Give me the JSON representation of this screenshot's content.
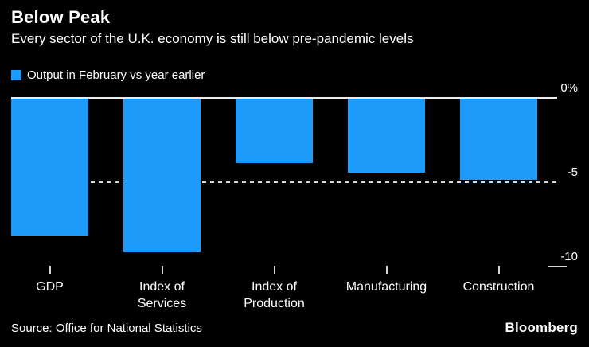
{
  "header": {
    "title": "Below Peak",
    "subtitle": "Every sector of the U.K. economy is still below pre-pandemic levels"
  },
  "legend": {
    "swatch_color": "#1e9bfa",
    "label": "Output in February vs year earlier"
  },
  "chart_data": {
    "type": "bar",
    "title": "Below Peak",
    "subtitle": "Every sector of the U.K. economy is still below pre-pandemic levels",
    "series_name": "Output in February vs year earlier",
    "categories": [
      "GDP",
      "Index of Services",
      "Index of Production",
      "Manufacturing",
      "Construction"
    ],
    "values": [
      -8.2,
      -9.2,
      -3.9,
      -4.5,
      -4.9
    ],
    "xlabel": "",
    "ylabel": "",
    "ylim": [
      -10,
      0
    ],
    "yticks": [
      {
        "value": 0,
        "label": "0%"
      },
      {
        "value": -5,
        "label": "-5"
      },
      {
        "value": -10,
        "label": "-10"
      }
    ],
    "bar_color": "#1e9bfa",
    "grid": {
      "zero_line": "solid",
      "mid_line": "dashed",
      "bottom_line": "right-stub"
    },
    "legend_position": "top-left",
    "axis_labels_position": "right"
  },
  "footer": {
    "source": "Source: Office for National Statistics",
    "brand": "Bloomberg"
  }
}
